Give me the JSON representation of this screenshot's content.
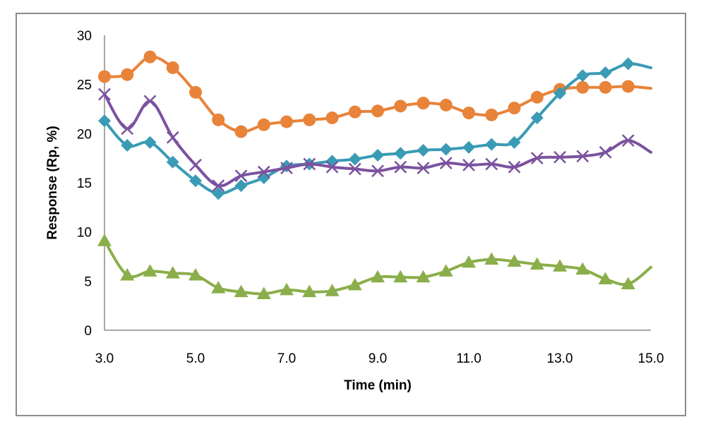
{
  "chart_data": {
    "type": "line",
    "title": "",
    "xlabel": "Time (min)",
    "ylabel": "Response (Rp, %)",
    "xlim": [
      3.0,
      15.0
    ],
    "ylim": [
      0,
      30
    ],
    "x_ticks": [
      "3.0",
      "5.0",
      "7.0",
      "9.0",
      "11.0",
      "13.0",
      "15.0"
    ],
    "y_ticks": [
      "0",
      "5",
      "10",
      "15",
      "20",
      "25",
      "30"
    ],
    "grid": false,
    "x": [
      3.0,
      3.5,
      4.0,
      4.5,
      5.0,
      5.5,
      6.0,
      6.5,
      7.0,
      7.5,
      8.0,
      8.5,
      9.0,
      9.5,
      10.0,
      10.5,
      11.0,
      11.5,
      12.0,
      12.5,
      13.0,
      13.5,
      14.0,
      14.5,
      15.0
    ],
    "series": [
      {
        "name": "orange-circle",
        "color": "#E8833A",
        "marker": "circle",
        "values": [
          25.8,
          26.0,
          27.8,
          26.7,
          24.2,
          21.4,
          20.2,
          20.9,
          21.2,
          21.4,
          21.6,
          22.2,
          22.3,
          22.8,
          23.1,
          22.9,
          22.1,
          21.9,
          22.6,
          23.7,
          24.5,
          24.7,
          24.7,
          24.8,
          24.6
        ],
        "marker_last": false
      },
      {
        "name": "teal-diamond",
        "color": "#3A9BB5",
        "marker": "diamond",
        "values": [
          21.3,
          18.8,
          19.1,
          17.1,
          15.2,
          13.9,
          14.7,
          15.5,
          16.7,
          16.9,
          17.2,
          17.4,
          17.8,
          18.0,
          18.3,
          18.4,
          18.6,
          18.9,
          19.1,
          21.6,
          24.1,
          25.9,
          26.2,
          27.1,
          26.7
        ],
        "marker_last": false
      },
      {
        "name": "purple-x",
        "color": "#7B529F",
        "marker": "x",
        "values": [
          24.0,
          20.5,
          23.3,
          19.6,
          16.8,
          14.7,
          15.7,
          16.1,
          16.5,
          16.9,
          16.6,
          16.4,
          16.2,
          16.6,
          16.5,
          17.0,
          16.8,
          16.9,
          16.6,
          17.5,
          17.6,
          17.7,
          18.1,
          19.3,
          18.1
        ],
        "marker_last": false
      },
      {
        "name": "green-triangle",
        "color": "#8AAE4A",
        "marker": "triangle",
        "values": [
          9.1,
          5.6,
          6.0,
          5.8,
          5.6,
          4.3,
          3.9,
          3.7,
          4.1,
          3.9,
          4.0,
          4.6,
          5.4,
          5.4,
          5.4,
          6.0,
          6.9,
          7.2,
          7.0,
          6.7,
          6.5,
          6.2,
          5.2,
          4.7,
          6.4
        ],
        "marker_last": false
      }
    ]
  }
}
